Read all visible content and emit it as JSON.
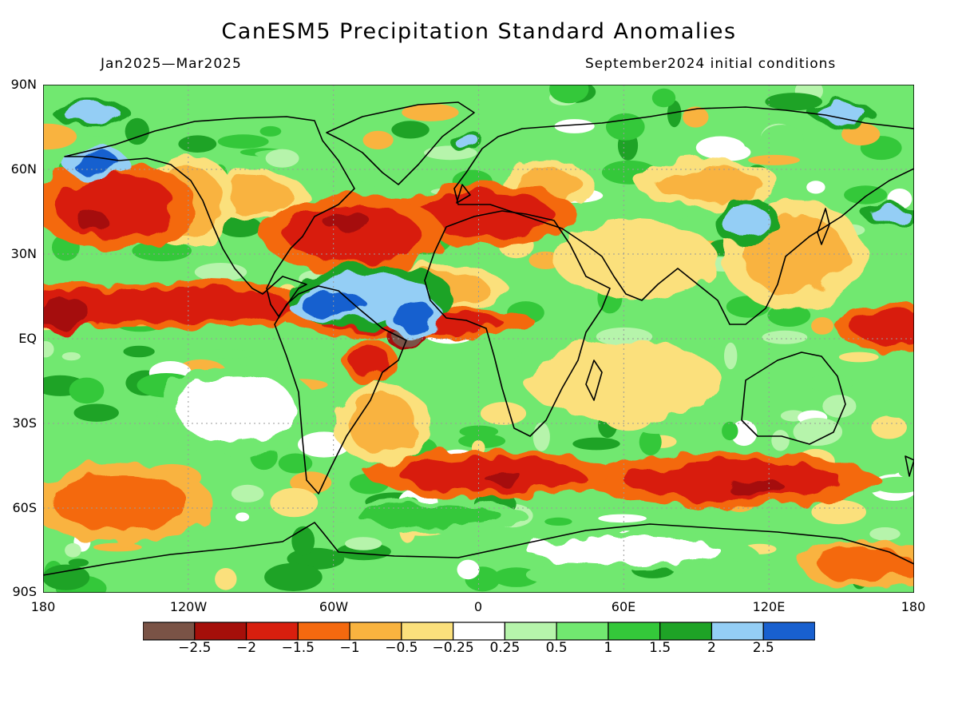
{
  "header": {
    "title": "CanESM5 Precipitation Standard Anomalies",
    "period": "Jan2025—Mar2025",
    "initial_conditions": "September2024 initial conditions"
  },
  "axes": {
    "lat_labels": [
      "90N",
      "60N",
      "30N",
      "EQ",
      "30S",
      "60S",
      "90S"
    ],
    "lon_labels": [
      "180",
      "120W",
      "60W",
      "0",
      "60E",
      "120E",
      "180"
    ]
  },
  "legend": {
    "colors": [
      "#7a5346",
      "#a50f0a",
      "#d81f0e",
      "#f4690f",
      "#f9b33f",
      "#fbe07c",
      "#ffffff",
      "#b6f4ab",
      "#71e870",
      "#34c83a",
      "#1ea326",
      "#94cef5",
      "#1860cf"
    ],
    "tick_labels": [
      "−2.5",
      "−2",
      "−1.5",
      "−1",
      "−0.5",
      "−0.25",
      "0.25",
      "0.5",
      "1",
      "1.5",
      "2",
      "2.5"
    ]
  },
  "chart_data": {
    "type": "heatmap",
    "title": "CanESM5 Precipitation Standard Anomalies",
    "x_range": [
      -180,
      180
    ],
    "y_range": [
      -90,
      90
    ],
    "value_levels": [
      -2.5,
      -2,
      -1.5,
      -1,
      -0.5,
      -0.25,
      0.25,
      0.5,
      1,
      1.5,
      2,
      2.5
    ],
    "background_value": 0.75,
    "anomaly_regions": [
      {
        "lon": -135,
        "lat": 12,
        "rx": 60,
        "ry": 6,
        "value": -1.6
      },
      {
        "lon": -172,
        "lat": 9,
        "rx": 12,
        "ry": 5,
        "value": -2.1
      },
      {
        "lon": -150,
        "lat": 47,
        "rx": 25,
        "ry": 11,
        "value": -1.6
      },
      {
        "lon": -160,
        "lat": 42,
        "rx": 6,
        "ry": 4,
        "value": -2.2
      },
      {
        "lon": -120,
        "lat": 49,
        "rx": 14,
        "ry": 12,
        "value": -0.9
      },
      {
        "lon": -95,
        "lat": 51,
        "rx": 18,
        "ry": 6,
        "value": -0.8
      },
      {
        "lon": -52,
        "lat": 37,
        "rx": 28,
        "ry": 10,
        "value": -1.7
      },
      {
        "lon": -55,
        "lat": 42,
        "rx": 10,
        "ry": 3,
        "value": -2.3
      },
      {
        "lon": -28,
        "lat": 6,
        "rx": 38,
        "ry": 4,
        "value": -1.6
      },
      {
        "lon": -18,
        "lat": 18,
        "rx": 22,
        "ry": 6,
        "value": -1.0
      },
      {
        "lon": -30,
        "lat": 0,
        "rx": 6,
        "ry": 2,
        "value": -2.6
      },
      {
        "lon": -45,
        "lat": -8,
        "rx": 8,
        "ry": 6,
        "value": -1.8
      },
      {
        "lon": -40,
        "lat": -30,
        "rx": 15,
        "ry": 10,
        "value": -0.6
      },
      {
        "lon": 3,
        "lat": 44,
        "rx": 28,
        "ry": 8,
        "value": -1.6
      },
      {
        "lon": 28,
        "lat": 55,
        "rx": 14,
        "ry": 6,
        "value": -0.8
      },
      {
        "lon": 5,
        "lat": -48,
        "rx": 38,
        "ry": 6,
        "value": -1.8
      },
      {
        "lon": 10,
        "lat": -49,
        "rx": 8,
        "ry": 2,
        "value": -2.4
      },
      {
        "lon": 105,
        "lat": -50,
        "rx": 45,
        "ry": 7,
        "value": -1.6
      },
      {
        "lon": 115,
        "lat": -53,
        "rx": 12,
        "ry": 3,
        "value": -2.1
      },
      {
        "lon": -148,
        "lat": -58,
        "rx": 28,
        "ry": 10,
        "value": -1.2
      },
      {
        "lon": 172,
        "lat": 4,
        "rx": 18,
        "ry": 6,
        "value": -1.8
      },
      {
        "lon": 130,
        "lat": 30,
        "rx": 22,
        "ry": 14,
        "value": -0.7
      },
      {
        "lon": 95,
        "lat": 55,
        "rx": 22,
        "ry": 6,
        "value": -0.8
      },
      {
        "lon": 65,
        "lat": 28,
        "rx": 25,
        "ry": 10,
        "value": -0.4
      },
      {
        "lon": 60,
        "lat": -15,
        "rx": 30,
        "ry": 10,
        "value": -0.4
      },
      {
        "lon": 160,
        "lat": -80,
        "rx": 20,
        "ry": 6,
        "value": -1.2
      },
      {
        "lon": -160,
        "lat": 80,
        "rx": 12,
        "ry": 3,
        "value": 2.2
      },
      {
        "lon": -158,
        "lat": 62,
        "rx": 10,
        "ry": 4,
        "value": 2.6
      },
      {
        "lon": -60,
        "lat": 12,
        "rx": 14,
        "ry": 4,
        "value": 2.6
      },
      {
        "lon": -27,
        "lat": 8,
        "rx": 9,
        "ry": 5,
        "value": 2.6
      },
      {
        "lon": -45,
        "lat": 15,
        "rx": 26,
        "ry": 8,
        "value": 2.0
      },
      {
        "lon": 110,
        "lat": 42,
        "rx": 10,
        "ry": 6,
        "value": 2.2
      },
      {
        "lon": 170,
        "lat": 44,
        "rx": 8,
        "ry": 3,
        "value": 2.4
      },
      {
        "lon": -5,
        "lat": 70,
        "rx": 5,
        "ry": 3,
        "value": 2.2
      },
      {
        "lon": 150,
        "lat": 80,
        "rx": 10,
        "ry": 3,
        "value": 2.1
      },
      {
        "lon": -20,
        "lat": -63,
        "rx": 30,
        "ry": 4,
        "value": 1.2
      },
      {
        "lon": 60,
        "lat": -75,
        "rx": 40,
        "ry": 5,
        "value": 0.2
      },
      {
        "lon": -100,
        "lat": -25,
        "rx": 25,
        "ry": 12,
        "value": 0.2
      }
    ]
  }
}
